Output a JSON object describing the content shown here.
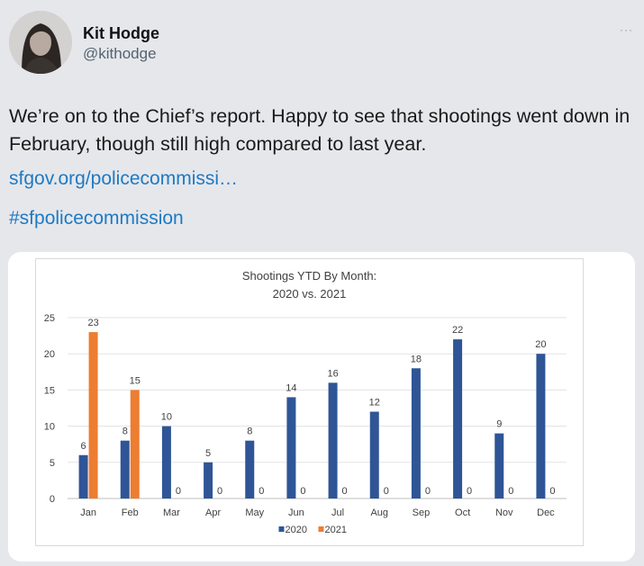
{
  "tweet": {
    "display_name": "Kit Hodge",
    "handle": "@kithodge",
    "more_label": "···",
    "text": "We’re on to the Chief’s report. Happy to see that shootings went down in February, though still high compared to last year.",
    "link_url": "sfgov.org/policecommissi…",
    "hashtag": "#sfpolicecommission"
  },
  "colors": {
    "link": "#1d7ac4",
    "series_2020": "#2f5597",
    "series_2021": "#ed7d31"
  },
  "icons": {
    "more": "more-horizontal-icon",
    "avatar": "profile-photo"
  },
  "chart_data": {
    "type": "bar",
    "title": "Shootings YTD By Month:",
    "subtitle": "2020 vs. 2021",
    "xlabel": "",
    "ylabel": "",
    "categories": [
      "Jan",
      "Feb",
      "Mar",
      "Apr",
      "May",
      "Jun",
      "Jul",
      "Aug",
      "Sep",
      "Oct",
      "Nov",
      "Dec"
    ],
    "series": [
      {
        "name": "2020",
        "values": [
          6,
          8,
          10,
          5,
          8,
          14,
          16,
          12,
          18,
          22,
          9,
          20
        ]
      },
      {
        "name": "2021",
        "values": [
          23,
          15,
          0,
          0,
          0,
          0,
          0,
          0,
          0,
          0,
          0,
          0
        ]
      }
    ],
    "ylim": [
      0,
      25
    ],
    "yticks": [
      0,
      5,
      10,
      15,
      20,
      25
    ],
    "grid": true,
    "legend": "bottom"
  }
}
